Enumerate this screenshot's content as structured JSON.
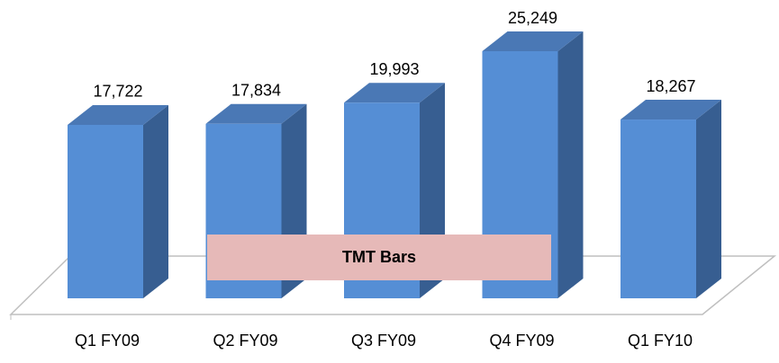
{
  "chart_data": {
    "type": "bar3d",
    "categories": [
      "Q1 FY09",
      "Q2 FY09",
      "Q3 FY09",
      "Q4 FY09",
      "Q1 FY10"
    ],
    "series": [
      {
        "name": "TMT Bars",
        "color": "#558ed5",
        "values": [
          17722,
          17834,
          19993,
          25249,
          18267
        ],
        "value_labels": [
          "17,722",
          "17,834",
          "19,993",
          "25,249",
          "18,267"
        ]
      }
    ]
  }
}
